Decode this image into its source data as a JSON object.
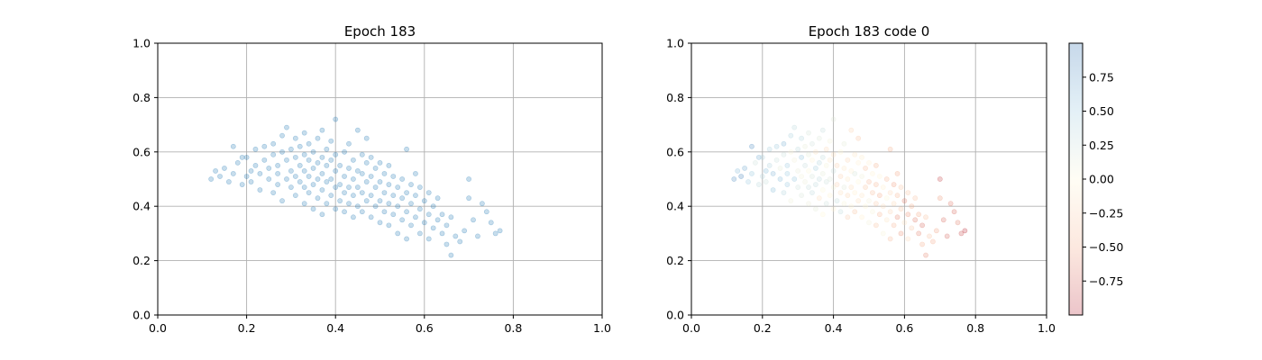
{
  "chart_data": [
    {
      "type": "scatter",
      "title": "Epoch 183",
      "xlim": [
        0.0,
        1.0
      ],
      "ylim": [
        0.0,
        1.0
      ],
      "xticks": [
        "0.0",
        "0.2",
        "0.4",
        "0.6",
        "0.8",
        "1.0"
      ],
      "yticks": [
        "0.0",
        "0.2",
        "0.4",
        "0.6",
        "0.8",
        "1.0"
      ],
      "grid": true,
      "marker_color": "#1f77b4",
      "marker_alpha": 0.25,
      "points": [
        [
          0.12,
          0.5
        ],
        [
          0.13,
          0.53
        ],
        [
          0.14,
          0.51
        ],
        [
          0.15,
          0.54
        ],
        [
          0.16,
          0.49
        ],
        [
          0.17,
          0.52
        ],
        [
          0.17,
          0.62
        ],
        [
          0.18,
          0.56
        ],
        [
          0.19,
          0.58
        ],
        [
          0.19,
          0.48
        ],
        [
          0.2,
          0.51
        ],
        [
          0.2,
          0.58
        ],
        [
          0.21,
          0.49
        ],
        [
          0.21,
          0.53
        ],
        [
          0.22,
          0.55
        ],
        [
          0.22,
          0.61
        ],
        [
          0.23,
          0.52
        ],
        [
          0.23,
          0.46
        ],
        [
          0.24,
          0.57
        ],
        [
          0.24,
          0.62
        ],
        [
          0.25,
          0.5
        ],
        [
          0.25,
          0.54
        ],
        [
          0.26,
          0.45
        ],
        [
          0.26,
          0.59
        ],
        [
          0.26,
          0.63
        ],
        [
          0.27,
          0.48
        ],
        [
          0.27,
          0.52
        ],
        [
          0.27,
          0.55
        ],
        [
          0.28,
          0.42
        ],
        [
          0.28,
          0.6
        ],
        [
          0.28,
          0.66
        ],
        [
          0.29,
          0.5
        ],
        [
          0.29,
          0.57
        ],
        [
          0.29,
          0.69
        ],
        [
          0.3,
          0.47
        ],
        [
          0.3,
          0.53
        ],
        [
          0.3,
          0.61
        ],
        [
          0.31,
          0.44
        ],
        [
          0.31,
          0.51
        ],
        [
          0.31,
          0.58
        ],
        [
          0.31,
          0.65
        ],
        [
          0.32,
          0.49
        ],
        [
          0.32,
          0.55
        ],
        [
          0.32,
          0.62
        ],
        [
          0.33,
          0.41
        ],
        [
          0.33,
          0.47
        ],
        [
          0.33,
          0.53
        ],
        [
          0.33,
          0.59
        ],
        [
          0.33,
          0.67
        ],
        [
          0.34,
          0.45
        ],
        [
          0.34,
          0.51
        ],
        [
          0.34,
          0.57
        ],
        [
          0.34,
          0.63
        ],
        [
          0.35,
          0.39
        ],
        [
          0.35,
          0.48
        ],
        [
          0.35,
          0.54
        ],
        [
          0.35,
          0.6
        ],
        [
          0.36,
          0.43
        ],
        [
          0.36,
          0.5
        ],
        [
          0.36,
          0.56
        ],
        [
          0.36,
          0.65
        ],
        [
          0.37,
          0.37
        ],
        [
          0.37,
          0.46
        ],
        [
          0.37,
          0.52
        ],
        [
          0.37,
          0.58
        ],
        [
          0.37,
          0.68
        ],
        [
          0.38,
          0.41
        ],
        [
          0.38,
          0.49
        ],
        [
          0.38,
          0.55
        ],
        [
          0.38,
          0.61
        ],
        [
          0.39,
          0.44
        ],
        [
          0.39,
          0.5
        ],
        [
          0.39,
          0.57
        ],
        [
          0.39,
          0.64
        ],
        [
          0.4,
          0.39
        ],
        [
          0.4,
          0.47
        ],
        [
          0.4,
          0.53
        ],
        [
          0.4,
          0.59
        ],
        [
          0.4,
          0.72
        ],
        [
          0.41,
          0.42
        ],
        [
          0.41,
          0.48
        ],
        [
          0.41,
          0.55
        ],
        [
          0.42,
          0.38
        ],
        [
          0.42,
          0.45
        ],
        [
          0.42,
          0.51
        ],
        [
          0.42,
          0.6
        ],
        [
          0.43,
          0.41
        ],
        [
          0.43,
          0.47
        ],
        [
          0.43,
          0.54
        ],
        [
          0.43,
          0.63
        ],
        [
          0.44,
          0.36
        ],
        [
          0.44,
          0.44
        ],
        [
          0.44,
          0.5
        ],
        [
          0.44,
          0.57
        ],
        [
          0.45,
          0.4
        ],
        [
          0.45,
          0.47
        ],
        [
          0.45,
          0.53
        ],
        [
          0.45,
          0.68
        ],
        [
          0.46,
          0.38
        ],
        [
          0.46,
          0.45
        ],
        [
          0.46,
          0.52
        ],
        [
          0.46,
          0.59
        ],
        [
          0.47,
          0.42
        ],
        [
          0.47,
          0.49
        ],
        [
          0.47,
          0.56
        ],
        [
          0.47,
          0.65
        ],
        [
          0.48,
          0.36
        ],
        [
          0.48,
          0.44
        ],
        [
          0.48,
          0.51
        ],
        [
          0.48,
          0.58
        ],
        [
          0.49,
          0.4
        ],
        [
          0.49,
          0.47
        ],
        [
          0.49,
          0.54
        ],
        [
          0.5,
          0.34
        ],
        [
          0.5,
          0.42
        ],
        [
          0.5,
          0.49
        ],
        [
          0.5,
          0.56
        ],
        [
          0.51,
          0.38
        ],
        [
          0.51,
          0.45
        ],
        [
          0.51,
          0.52
        ],
        [
          0.52,
          0.33
        ],
        [
          0.52,
          0.41
        ],
        [
          0.52,
          0.48
        ],
        [
          0.52,
          0.55
        ],
        [
          0.53,
          0.37
        ],
        [
          0.53,
          0.44
        ],
        [
          0.53,
          0.51
        ],
        [
          0.54,
          0.3
        ],
        [
          0.54,
          0.4
        ],
        [
          0.54,
          0.47
        ],
        [
          0.55,
          0.35
        ],
        [
          0.55,
          0.43
        ],
        [
          0.55,
          0.5
        ],
        [
          0.56,
          0.28
        ],
        [
          0.56,
          0.38
        ],
        [
          0.56,
          0.45
        ],
        [
          0.56,
          0.61
        ],
        [
          0.57,
          0.33
        ],
        [
          0.57,
          0.41
        ],
        [
          0.57,
          0.48
        ],
        [
          0.58,
          0.36
        ],
        [
          0.58,
          0.44
        ],
        [
          0.58,
          0.52
        ],
        [
          0.59,
          0.3
        ],
        [
          0.59,
          0.39
        ],
        [
          0.59,
          0.47
        ],
        [
          0.6,
          0.34
        ],
        [
          0.6,
          0.42
        ],
        [
          0.61,
          0.28
        ],
        [
          0.61,
          0.37
        ],
        [
          0.61,
          0.45
        ],
        [
          0.62,
          0.32
        ],
        [
          0.62,
          0.4
        ],
        [
          0.63,
          0.35
        ],
        [
          0.63,
          0.43
        ],
        [
          0.64,
          0.3
        ],
        [
          0.64,
          0.37
        ],
        [
          0.65,
          0.26
        ],
        [
          0.65,
          0.33
        ],
        [
          0.66,
          0.22
        ],
        [
          0.66,
          0.36
        ],
        [
          0.67,
          0.29
        ],
        [
          0.68,
          0.27
        ],
        [
          0.69,
          0.31
        ],
        [
          0.7,
          0.43
        ],
        [
          0.7,
          0.5
        ],
        [
          0.71,
          0.35
        ],
        [
          0.72,
          0.29
        ],
        [
          0.73,
          0.41
        ],
        [
          0.74,
          0.38
        ],
        [
          0.75,
          0.34
        ],
        [
          0.76,
          0.3
        ],
        [
          0.77,
          0.31
        ]
      ]
    },
    {
      "type": "scatter",
      "title": "Epoch 183 code 0",
      "xlim": [
        0.0,
        1.0
      ],
      "ylim": [
        0.0,
        1.0
      ],
      "xticks": [
        "0.0",
        "0.2",
        "0.4",
        "0.6",
        "0.8",
        "1.0"
      ],
      "yticks": [
        "0.0",
        "0.2",
        "0.4",
        "0.6",
        "0.8",
        "1.0"
      ],
      "grid": true,
      "marker_alpha": 0.25,
      "colorscale": [
        "#b2182b",
        "#f4a582",
        "#fff7d6",
        "#92c5de",
        "#2166ac"
      ],
      "colorbar": {
        "range": [
          -1.0,
          1.0
        ],
        "ticks": [
          0.75,
          0.5,
          0.25,
          0.0,
          -0.25,
          -0.5,
          -0.75
        ],
        "tick_labels": [
          "0.75",
          "0.50",
          "0.25",
          "0.00",
          "−0.25",
          "−0.50",
          "−0.75"
        ]
      }
    }
  ]
}
